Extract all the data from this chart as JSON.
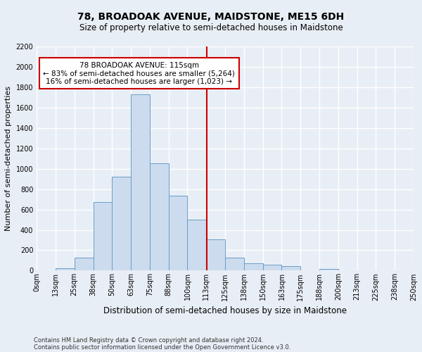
{
  "title_line1": "78, BROADOAK AVENUE, MAIDSTONE, ME15 6DH",
  "title_line2": "Size of property relative to semi-detached houses in Maidstone",
  "xlabel": "Distribution of semi-detached houses by size in Maidstone",
  "ylabel": "Number of semi-detached properties",
  "footer_line1": "Contains HM Land Registry data © Crown copyright and database right 2024.",
  "footer_line2": "Contains public sector information licensed under the Open Government Licence v3.0.",
  "bin_labels": [
    "0sqm",
    "13sqm",
    "25sqm",
    "38sqm",
    "50sqm",
    "63sqm",
    "75sqm",
    "88sqm",
    "100sqm",
    "113sqm",
    "125sqm",
    "138sqm",
    "150sqm",
    "163sqm",
    "175sqm",
    "188sqm",
    "200sqm",
    "213sqm",
    "225sqm",
    "238sqm",
    "250sqm"
  ],
  "bar_values": [
    0,
    25,
    130,
    670,
    920,
    1730,
    1055,
    735,
    500,
    310,
    130,
    75,
    55,
    45,
    0,
    15,
    0,
    0,
    0,
    0
  ],
  "bar_color": "#ccdcee",
  "bar_edge_color": "#6a9cc9",
  "annotation_title": "78 BROADOAK AVENUE: 115sqm",
  "annotation_line2": "← 83% of semi-detached houses are smaller (5,264)",
  "annotation_line3": "16% of semi-detached houses are larger (1,023) →",
  "property_line_x": 113,
  "ylim": [
    0,
    2200
  ],
  "yticks": [
    0,
    200,
    400,
    600,
    800,
    1000,
    1200,
    1400,
    1600,
    1800,
    2000,
    2200
  ],
  "bin_width": 12.5,
  "bin_starts": [
    0,
    12.5,
    25,
    37.5,
    50,
    62.5,
    75,
    87.5,
    100,
    112.5,
    125,
    137.5,
    150,
    162.5,
    175,
    187.5,
    200,
    212.5,
    225,
    237.5
  ],
  "background_color": "#e8eef5",
  "grid_color": "#ffffff",
  "annotation_box_color": "#ffffff",
  "annotation_border_color": "#cc0000",
  "vline_color": "#cc0000",
  "title1_fontsize": 10,
  "title2_fontsize": 8.5,
  "ylabel_fontsize": 8,
  "xlabel_fontsize": 8.5,
  "tick_fontsize": 7,
  "footer_fontsize": 6,
  "annot_fontsize": 7.5
}
